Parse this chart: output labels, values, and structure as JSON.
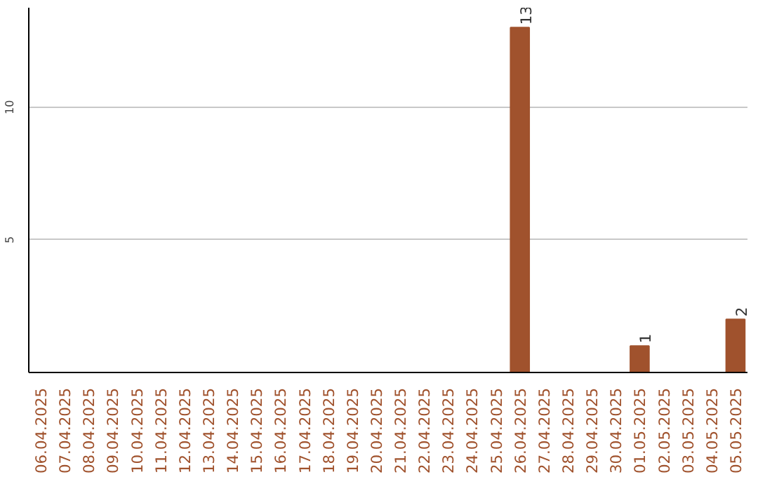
{
  "chart_data": {
    "type": "bar",
    "categories": [
      "06.04.2025",
      "07.04.2025",
      "08.04.2025",
      "09.04.2025",
      "10.04.2025",
      "11.04.2025",
      "12.04.2025",
      "13.04.2025",
      "14.04.2025",
      "15.04.2025",
      "16.04.2025",
      "17.04.2025",
      "18.04.2025",
      "19.04.2025",
      "20.04.2025",
      "21.04.2025",
      "22.04.2025",
      "23.04.2025",
      "24.04.2025",
      "25.04.2025",
      "26.04.2025",
      "27.04.2025",
      "28.04.2025",
      "29.04.2025",
      "30.04.2025",
      "01.05.2025",
      "02.05.2025",
      "03.05.2025",
      "04.05.2025",
      "05.05.2025"
    ],
    "values": [
      0,
      0,
      0,
      0,
      0,
      0,
      0,
      0,
      0,
      0,
      0,
      0,
      0,
      0,
      0,
      0,
      0,
      0,
      0,
      0,
      13,
      0,
      0,
      0,
      0,
      1,
      0,
      0,
      0,
      2
    ],
    "value_labels": [
      null,
      null,
      null,
      null,
      null,
      null,
      null,
      null,
      null,
      null,
      null,
      null,
      null,
      null,
      null,
      null,
      null,
      null,
      null,
      null,
      "13",
      null,
      null,
      null,
      null,
      "1",
      null,
      null,
      null,
      "2"
    ],
    "color": "#a0522d",
    "ylim": [
      0,
      13.75
    ],
    "yticks": [
      5,
      10
    ],
    "grid": "y"
  }
}
